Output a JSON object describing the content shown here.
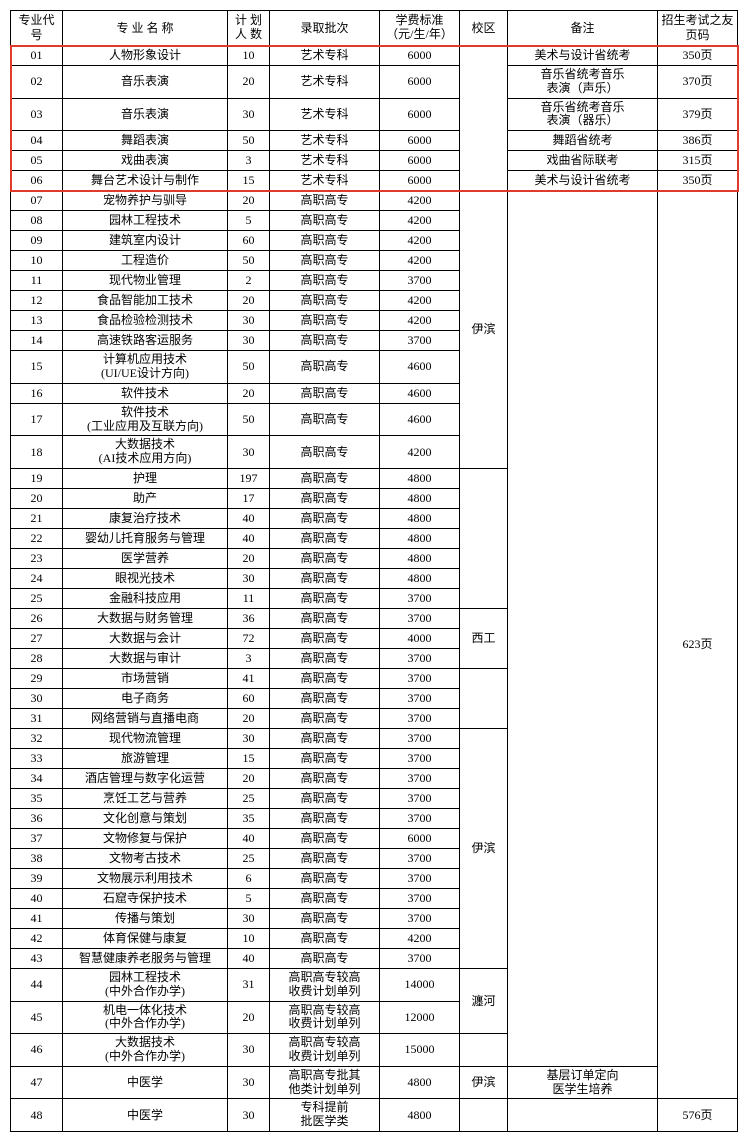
{
  "headers": {
    "code": "专业代号",
    "name": "专 业 名 称",
    "plan": "计 划\n人 数",
    "batch": "录取批次",
    "fee": "学费标准\n（元/生/年）",
    "campus": "校区",
    "note": "备注",
    "page": "招生考试之友页码"
  },
  "highlight": {
    "first_code": "01",
    "last_code": "06",
    "color": "#e03a2a"
  },
  "rows": [
    {
      "code": "01",
      "name": "人物形象设计",
      "plan": "10",
      "batch": "艺术专科",
      "fee": "6000",
      "note": "美术与设计省统考",
      "page": "350页"
    },
    {
      "code": "02",
      "name": "音乐表演",
      "plan": "20",
      "batch": "艺术专科",
      "fee": "6000",
      "note": "音乐省统考音乐表演（声乐）",
      "page": "370页"
    },
    {
      "code": "03",
      "name": "音乐表演",
      "plan": "30",
      "batch": "艺术专科",
      "fee": "6000",
      "note": "音乐省统考音乐表演（器乐）",
      "page": "379页"
    },
    {
      "code": "04",
      "name": "舞蹈表演",
      "plan": "50",
      "batch": "艺术专科",
      "fee": "6000",
      "note": "舞蹈省统考",
      "page": "386页"
    },
    {
      "code": "05",
      "name": "戏曲表演",
      "plan": "3",
      "batch": "艺术专科",
      "fee": "6000",
      "note": "戏曲省际联考",
      "page": "315页"
    },
    {
      "code": "06",
      "name": "舞台艺术设计与制作",
      "plan": "15",
      "batch": "艺术专科",
      "fee": "6000",
      "note": "美术与设计省统考",
      "page": "350页"
    },
    {
      "code": "07",
      "name": "宠物养护与驯导",
      "plan": "20",
      "batch": "高职高专",
      "fee": "4200"
    },
    {
      "code": "08",
      "name": "园林工程技术",
      "plan": "5",
      "batch": "高职高专",
      "fee": "4200"
    },
    {
      "code": "09",
      "name": "建筑室内设计",
      "plan": "60",
      "batch": "高职高专",
      "fee": "4200"
    },
    {
      "code": "10",
      "name": "工程造价",
      "plan": "50",
      "batch": "高职高专",
      "fee": "4200"
    },
    {
      "code": "11",
      "name": "现代物业管理",
      "plan": "2",
      "batch": "高职高专",
      "fee": "3700"
    },
    {
      "code": "12",
      "name": "食品智能加工技术",
      "plan": "20",
      "batch": "高职高专",
      "fee": "4200"
    },
    {
      "code": "13",
      "name": "食品检验检测技术",
      "plan": "30",
      "batch": "高职高专",
      "fee": "4200"
    },
    {
      "code": "14",
      "name": "高速铁路客运服务",
      "plan": "30",
      "batch": "高职高专",
      "fee": "3700"
    },
    {
      "code": "15",
      "name": "计算机应用技术\n(UI/UE设计方向)",
      "plan": "50",
      "batch": "高职高专",
      "fee": "4600"
    },
    {
      "code": "16",
      "name": "软件技术",
      "plan": "20",
      "batch": "高职高专",
      "fee": "4600"
    },
    {
      "code": "17",
      "name": "软件技术\n(工业应用及互联方向)",
      "plan": "50",
      "batch": "高职高专",
      "fee": "4600"
    },
    {
      "code": "18",
      "name": "大数据技术\n(AI技术应用方向)",
      "plan": "30",
      "batch": "高职高专",
      "fee": "4200"
    },
    {
      "code": "19",
      "name": "护理",
      "plan": "197",
      "batch": "高职高专",
      "fee": "4800"
    },
    {
      "code": "20",
      "name": "助产",
      "plan": "17",
      "batch": "高职高专",
      "fee": "4800"
    },
    {
      "code": "21",
      "name": "康复治疗技术",
      "plan": "40",
      "batch": "高职高专",
      "fee": "4800"
    },
    {
      "code": "22",
      "name": "婴幼儿托育服务与管理",
      "plan": "40",
      "batch": "高职高专",
      "fee": "4800"
    },
    {
      "code": "23",
      "name": "医学营养",
      "plan": "20",
      "batch": "高职高专",
      "fee": "4800"
    },
    {
      "code": "24",
      "name": "眼视光技术",
      "plan": "30",
      "batch": "高职高专",
      "fee": "4800"
    },
    {
      "code": "25",
      "name": "金融科技应用",
      "plan": "11",
      "batch": "高职高专",
      "fee": "3700"
    },
    {
      "code": "26",
      "name": "大数据与财务管理",
      "plan": "36",
      "batch": "高职高专",
      "fee": "3700"
    },
    {
      "code": "27",
      "name": "大数据与会计",
      "plan": "72",
      "batch": "高职高专",
      "fee": "4000"
    },
    {
      "code": "28",
      "name": "大数据与审计",
      "plan": "3",
      "batch": "高职高专",
      "fee": "3700"
    },
    {
      "code": "29",
      "name": "市场营销",
      "plan": "41",
      "batch": "高职高专",
      "fee": "3700"
    },
    {
      "code": "30",
      "name": "电子商务",
      "plan": "60",
      "batch": "高职高专",
      "fee": "3700"
    },
    {
      "code": "31",
      "name": "网络营销与直播电商",
      "plan": "20",
      "batch": "高职高专",
      "fee": "3700"
    },
    {
      "code": "32",
      "name": "现代物流管理",
      "plan": "30",
      "batch": "高职高专",
      "fee": "3700"
    },
    {
      "code": "33",
      "name": "旅游管理",
      "plan": "15",
      "batch": "高职高专",
      "fee": "3700"
    },
    {
      "code": "34",
      "name": "酒店管理与数字化运营",
      "plan": "20",
      "batch": "高职高专",
      "fee": "3700"
    },
    {
      "code": "35",
      "name": "烹饪工艺与营养",
      "plan": "25",
      "batch": "高职高专",
      "fee": "3700"
    },
    {
      "code": "36",
      "name": "文化创意与策划",
      "plan": "35",
      "batch": "高职高专",
      "fee": "3700"
    },
    {
      "code": "37",
      "name": "文物修复与保护",
      "plan": "40",
      "batch": "高职高专",
      "fee": "6000"
    },
    {
      "code": "38",
      "name": "文物考古技术",
      "plan": "25",
      "batch": "高职高专",
      "fee": "3700"
    },
    {
      "code": "39",
      "name": "文物展示利用技术",
      "plan": "6",
      "batch": "高职高专",
      "fee": "3700"
    },
    {
      "code": "40",
      "name": "石窟寺保护技术",
      "plan": "5",
      "batch": "高职高专",
      "fee": "3700"
    },
    {
      "code": "41",
      "name": "传播与策划",
      "plan": "30",
      "batch": "高职高专",
      "fee": "3700"
    },
    {
      "code": "42",
      "name": "体育保健与康复",
      "plan": "10",
      "batch": "高职高专",
      "fee": "4200"
    },
    {
      "code": "43",
      "name": "智慧健康养老服务与管理",
      "plan": "40",
      "batch": "高职高专",
      "fee": "3700"
    },
    {
      "code": "44",
      "name": "园林工程技术\n(中外合作办学)",
      "plan": "31",
      "batch": "高职高专较高收费计划单列",
      "fee": "14000"
    },
    {
      "code": "45",
      "name": "机电一体化技术\n(中外合作办学)",
      "plan": "20",
      "batch": "高职高专较高收费计划单列",
      "fee": "12000"
    },
    {
      "code": "46",
      "name": "大数据技术\n(中外合作办学)",
      "plan": "30",
      "batch": "高职高专较高收费计划单列",
      "fee": "15000"
    },
    {
      "code": "47",
      "name": "中医学",
      "plan": "30",
      "batch": "高职高专批其他类计划单列",
      "fee": "4800",
      "note": "基层订单定向医学生培养"
    },
    {
      "code": "48",
      "name": "中医学",
      "plan": "30",
      "batch": "专科提前批医学类",
      "fee": "4800",
      "page": "576页"
    }
  ],
  "campus_spans": [
    {
      "label": "",
      "start": "01",
      "end": "06"
    },
    {
      "label": "伊滨",
      "start": "07",
      "end": "18"
    },
    {
      "label": "",
      "start": "19",
      "end": "25"
    },
    {
      "label": "西工",
      "start": "26",
      "end": "28"
    },
    {
      "label": "",
      "start": "29",
      "end": "31"
    },
    {
      "label": "伊滨",
      "start": "32",
      "end": "43"
    },
    {
      "label": "瀍河",
      "start": "44",
      "end": "45"
    },
    {
      "label": "",
      "start": "46",
      "end": "46"
    },
    {
      "label": "伊滨",
      "start": "47",
      "end": "47"
    },
    {
      "label": "",
      "start": "48",
      "end": "48"
    }
  ],
  "note_spans": [
    {
      "start": "07",
      "end": "46",
      "label": ""
    }
  ],
  "page_spans": [
    {
      "start": "07",
      "end": "47",
      "label": "623页"
    }
  ]
}
